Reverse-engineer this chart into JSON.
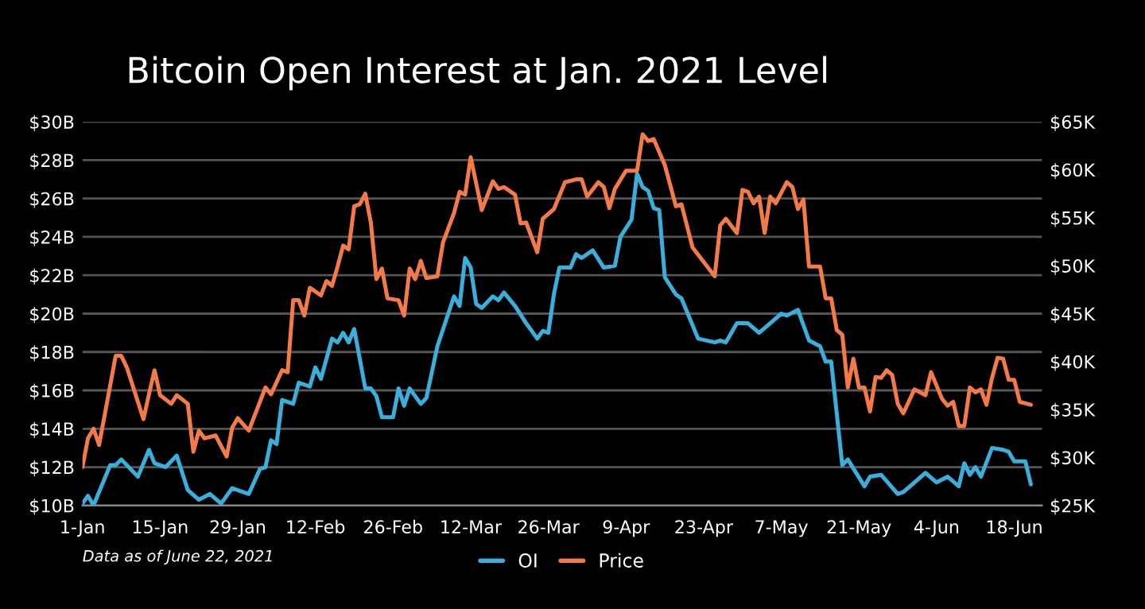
{
  "chart_data": {
    "type": "line",
    "title": "Bitcoin Open Interest at Jan. 2021 Level",
    "xlim": [
      "2021-01-01",
      "2021-06-23"
    ],
    "xticks": [
      {
        "value": "2021-01-01",
        "label": "1-Jan"
      },
      {
        "value": "2021-01-15",
        "label": "15-Jan"
      },
      {
        "value": "2021-01-29",
        "label": "29-Jan"
      },
      {
        "value": "2021-02-12",
        "label": "12-Feb"
      },
      {
        "value": "2021-02-26",
        "label": "26-Feb"
      },
      {
        "value": "2021-03-12",
        "label": "12-Mar"
      },
      {
        "value": "2021-03-26",
        "label": "26-Mar"
      },
      {
        "value": "2021-04-09",
        "label": "9-Apr"
      },
      {
        "value": "2021-04-23",
        "label": "23-Apr"
      },
      {
        "value": "2021-05-07",
        "label": "7-May"
      },
      {
        "value": "2021-05-21",
        "label": "21-May"
      },
      {
        "value": "2021-06-04",
        "label": "4-Jun"
      },
      {
        "value": "2021-06-18",
        "label": "18-Jun"
      }
    ],
    "ylim": [
      10,
      30
    ],
    "yticks": [
      {
        "value": 10,
        "label": "$10B"
      },
      {
        "value": 12,
        "label": "$12B"
      },
      {
        "value": 14,
        "label": "$14B"
      },
      {
        "value": 16,
        "label": "$16B"
      },
      {
        "value": 18,
        "label": "$18B"
      },
      {
        "value": 20,
        "label": "$20B"
      },
      {
        "value": 22,
        "label": "$22B"
      },
      {
        "value": 24,
        "label": "$24B"
      },
      {
        "value": 26,
        "label": "$26B"
      },
      {
        "value": 28,
        "label": "$28B"
      },
      {
        "value": 30,
        "label": "$30B"
      }
    ],
    "y2lim": [
      25,
      65
    ],
    "y2ticks": [
      {
        "value": 25,
        "label": "$25K"
      },
      {
        "value": 30,
        "label": "$30K"
      },
      {
        "value": 35,
        "label": "$35K"
      },
      {
        "value": 40,
        "label": "$40K"
      },
      {
        "value": 45,
        "label": "$45K"
      },
      {
        "value": 50,
        "label": "$50K"
      },
      {
        "value": 55,
        "label": "$55K"
      },
      {
        "value": 60,
        "label": "$60K"
      },
      {
        "value": 65,
        "label": "$65K"
      }
    ],
    "grid": "y",
    "legend": "bottom",
    "marker": "none",
    "line_style": "solid",
    "annotations": [
      "Data as of June 22, 2021"
    ],
    "series": [
      {
        "name": "OI",
        "color": "#3aafdc",
        "x": [
          "2021-01-01",
          "2021-01-02",
          "2021-01-03",
          "2021-01-06",
          "2021-01-07",
          "2021-01-08",
          "2021-01-11",
          "2021-01-13",
          "2021-01-14",
          "2021-01-16",
          "2021-01-18",
          "2021-01-20",
          "2021-01-22",
          "2021-01-24",
          "2021-01-26",
          "2021-01-28",
          "2021-01-31",
          "2021-02-02",
          "2021-02-03",
          "2021-02-04",
          "2021-02-05",
          "2021-02-06",
          "2021-02-08",
          "2021-02-09",
          "2021-02-11",
          "2021-02-12",
          "2021-02-13",
          "2021-02-15",
          "2021-02-16",
          "2021-02-17",
          "2021-02-18",
          "2021-02-19",
          "2021-02-21",
          "2021-02-22",
          "2021-02-23",
          "2021-02-24",
          "2021-02-26",
          "2021-02-27",
          "2021-02-28",
          "2021-03-01",
          "2021-03-03",
          "2021-03-04",
          "2021-03-06",
          "2021-03-09",
          "2021-03-10",
          "2021-03-11",
          "2021-03-12",
          "2021-03-13",
          "2021-03-14",
          "2021-03-16",
          "2021-03-17",
          "2021-03-18",
          "2021-03-20",
          "2021-03-22",
          "2021-03-24",
          "2021-03-25",
          "2021-03-26",
          "2021-03-27",
          "2021-03-28",
          "2021-03-30",
          "2021-03-31",
          "2021-04-01",
          "2021-04-03",
          "2021-04-05",
          "2021-04-07",
          "2021-04-08",
          "2021-04-10",
          "2021-04-11",
          "2021-04-12",
          "2021-04-13",
          "2021-04-14",
          "2021-04-15",
          "2021-04-16",
          "2021-04-18",
          "2021-04-19",
          "2021-04-22",
          "2021-04-25",
          "2021-04-26",
          "2021-04-27",
          "2021-04-29",
          "2021-05-01",
          "2021-05-03",
          "2021-05-05",
          "2021-05-07",
          "2021-05-08",
          "2021-05-10",
          "2021-05-12",
          "2021-05-14",
          "2021-05-15",
          "2021-05-16",
          "2021-05-18",
          "2021-05-19",
          "2021-05-22",
          "2021-05-23",
          "2021-05-25",
          "2021-05-28",
          "2021-05-29",
          "2021-05-31",
          "2021-06-02",
          "2021-06-04",
          "2021-06-06",
          "2021-06-08",
          "2021-06-09",
          "2021-06-10",
          "2021-06-11",
          "2021-06-12",
          "2021-06-14",
          "2021-06-16",
          "2021-06-17",
          "2021-06-18",
          "2021-06-20",
          "2021-06-21"
        ],
        "values": [
          10.1,
          10.5,
          10.0,
          12.1,
          12.1,
          12.4,
          11.5,
          12.9,
          12.2,
          12.0,
          12.6,
          10.8,
          10.3,
          10.6,
          10.1,
          10.9,
          10.6,
          11.9,
          12.0,
          13.4,
          13.2,
          15.5,
          15.3,
          16.4,
          16.2,
          17.2,
          16.6,
          18.7,
          18.5,
          19.0,
          18.5,
          19.2,
          16.1,
          16.1,
          15.7,
          14.6,
          14.6,
          16.1,
          15.2,
          16.1,
          15.3,
          15.6,
          18.3,
          20.9,
          20.4,
          22.9,
          22.4,
          20.5,
          20.3,
          20.9,
          20.7,
          21.1,
          20.4,
          19.5,
          18.7,
          19.1,
          19.0,
          21.0,
          22.4,
          22.4,
          23.1,
          22.9,
          23.3,
          22.4,
          22.5,
          24.0,
          24.9,
          27.3,
          26.6,
          26.4,
          25.5,
          25.4,
          21.9,
          21.0,
          20.8,
          18.7,
          18.5,
          18.6,
          18.5,
          19.5,
          19.5,
          19.0,
          19.5,
          20.0,
          19.9,
          20.2,
          18.6,
          18.3,
          17.5,
          17.5,
          12.1,
          12.4,
          11.0,
          11.5,
          11.6,
          10.6,
          10.7,
          11.2,
          11.7,
          11.2,
          11.5,
          11.0,
          12.2,
          11.6,
          12.0,
          11.5,
          13.0,
          12.9,
          12.8,
          12.3,
          12.3,
          11.1
        ]
      },
      {
        "name": "Price",
        "color": "#f47a47",
        "axis": "y2",
        "x": [
          "2021-01-01",
          "2021-01-02",
          "2021-01-03",
          "2021-01-04",
          "2021-01-07",
          "2021-01-08",
          "2021-01-09",
          "2021-01-12",
          "2021-01-13",
          "2021-01-14",
          "2021-01-15",
          "2021-01-17",
          "2021-01-18",
          "2021-01-20",
          "2021-01-21",
          "2021-01-22",
          "2021-01-23",
          "2021-01-25",
          "2021-01-27",
          "2021-01-28",
          "2021-01-29",
          "2021-01-31",
          "2021-02-03",
          "2021-02-04",
          "2021-02-06",
          "2021-02-07",
          "2021-02-08",
          "2021-02-09",
          "2021-02-10",
          "2021-02-11",
          "2021-02-13",
          "2021-02-14",
          "2021-02-15",
          "2021-02-16",
          "2021-02-17",
          "2021-02-18",
          "2021-02-19",
          "2021-02-20",
          "2021-02-21",
          "2021-02-22",
          "2021-02-23",
          "2021-02-24",
          "2021-02-25",
          "2021-02-27",
          "2021-02-28",
          "2021-03-01",
          "2021-03-02",
          "2021-03-03",
          "2021-03-04",
          "2021-03-06",
          "2021-03-07",
          "2021-03-09",
          "2021-03-10",
          "2021-03-11",
          "2021-03-12",
          "2021-03-14",
          "2021-03-16",
          "2021-03-17",
          "2021-03-18",
          "2021-03-20",
          "2021-03-21",
          "2021-03-22",
          "2021-03-24",
          "2021-03-25",
          "2021-03-27",
          "2021-03-29",
          "2021-03-31",
          "2021-04-01",
          "2021-04-02",
          "2021-04-04",
          "2021-04-05",
          "2021-04-06",
          "2021-04-07",
          "2021-04-09",
          "2021-04-11",
          "2021-04-12",
          "2021-04-13",
          "2021-04-14",
          "2021-04-16",
          "2021-04-18",
          "2021-04-19",
          "2021-04-21",
          "2021-04-25",
          "2021-04-26",
          "2021-04-27",
          "2021-04-29",
          "2021-04-30",
          "2021-05-01",
          "2021-05-02",
          "2021-05-03",
          "2021-05-04",
          "2021-05-05",
          "2021-05-06",
          "2021-05-08",
          "2021-05-09",
          "2021-05-10",
          "2021-05-11",
          "2021-05-12",
          "2021-05-14",
          "2021-05-15",
          "2021-05-16",
          "2021-05-17",
          "2021-05-18",
          "2021-05-19",
          "2021-05-20",
          "2021-05-21",
          "2021-05-22",
          "2021-05-23",
          "2021-05-24",
          "2021-05-25",
          "2021-05-26",
          "2021-05-27",
          "2021-05-28",
          "2021-05-29",
          "2021-05-31",
          "2021-06-02",
          "2021-06-03",
          "2021-06-05",
          "2021-06-06",
          "2021-06-07",
          "2021-06-08",
          "2021-06-09",
          "2021-06-10",
          "2021-06-11",
          "2021-06-12",
          "2021-06-13",
          "2021-06-14",
          "2021-06-15",
          "2021-06-16",
          "2021-06-17",
          "2021-06-18",
          "2021-06-19",
          "2021-06-21"
        ],
        "values": [
          29.0,
          32.0,
          33.0,
          31.3,
          40.6,
          40.6,
          39.4,
          34.0,
          36.6,
          39.1,
          36.5,
          35.6,
          36.5,
          35.6,
          30.6,
          32.8,
          32.0,
          32.3,
          30.1,
          33.1,
          34.1,
          32.8,
          37.3,
          36.6,
          39.1,
          38.9,
          46.4,
          46.4,
          44.8,
          47.7,
          46.9,
          48.4,
          47.9,
          49.9,
          52.1,
          51.7,
          56.2,
          56.4,
          57.5,
          54.5,
          48.6,
          49.7,
          46.6,
          46.4,
          44.8,
          49.7,
          48.6,
          50.5,
          48.7,
          48.9,
          52.4,
          55.5,
          57.7,
          57.4,
          61.3,
          55.8,
          58.8,
          58.0,
          58.2,
          57.4,
          54.4,
          54.5,
          51.4,
          54.9,
          55.9,
          58.7,
          59.0,
          59.0,
          57.2,
          58.7,
          58.2,
          56.0,
          58.0,
          59.9,
          59.9,
          63.7,
          63.0,
          63.2,
          60.5,
          56.2,
          56.4,
          51.9,
          48.9,
          54.2,
          54.9,
          53.4,
          57.9,
          57.7,
          56.5,
          57.2,
          53.4,
          57.2,
          56.5,
          58.7,
          58.2,
          55.9,
          56.9,
          49.9,
          49.9,
          46.6,
          46.6,
          43.3,
          42.8,
          37.3,
          40.3,
          37.3,
          37.3,
          34.8,
          38.4,
          38.3,
          39.1,
          38.6,
          35.6,
          34.6,
          37.1,
          36.5,
          38.9,
          36.1,
          35.4,
          35.8,
          33.3,
          33.3,
          37.3,
          36.8,
          37.1,
          35.5,
          38.3,
          40.4,
          40.3,
          38.1,
          38.1,
          35.8,
          35.5
        ]
      }
    ]
  }
}
